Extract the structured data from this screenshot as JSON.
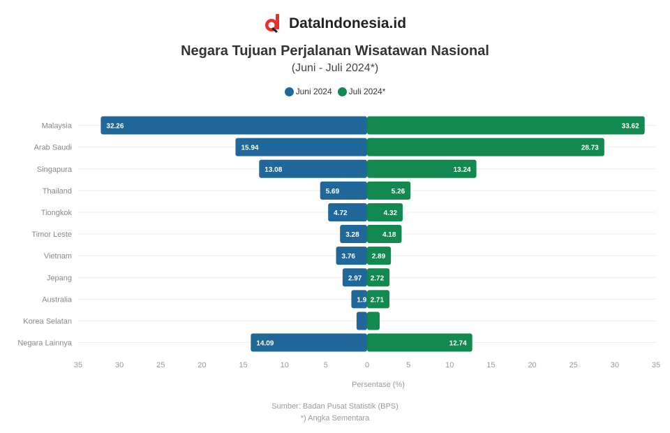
{
  "brand": {
    "name": "DataIndonesia.id",
    "logo": "di-logo-icon"
  },
  "colors": {
    "juni": "#21689a",
    "juli": "#12894f",
    "logo_red": "#e8302d"
  },
  "chart_data": {
    "type": "bar",
    "orientation": "horizontal-butterfly",
    "title": "Negara Tujuan Perjalanan Wisatawan Nasional",
    "subtitle": "(Juni - Juli 2024*)",
    "categories": [
      "Malaysia",
      "Arab Saudi",
      "Singapura",
      "Thailand",
      "Tiongkok",
      "Timor Leste",
      "Vietnam",
      "Jepang",
      "Australia",
      "Korea Selatan",
      "Negara Lainnya"
    ],
    "series": [
      {
        "name": "Juni 2024",
        "values": [
          32.26,
          15.94,
          13.08,
          5.69,
          4.72,
          3.28,
          3.76,
          2.97,
          1.91,
          1.28,
          14.09
        ]
      },
      {
        "name": "Juli 2024*",
        "values": [
          33.62,
          28.73,
          13.24,
          5.26,
          4.32,
          4.18,
          2.89,
          2.72,
          2.71,
          1.52,
          12.74
        ]
      }
    ],
    "xlim": [
      -35,
      35
    ],
    "xticks": [
      -35,
      -30,
      -25,
      -20,
      -15,
      -10,
      -5,
      0,
      5,
      10,
      15,
      20,
      25,
      30,
      35
    ],
    "xticklabels": [
      "35",
      "30",
      "25",
      "20",
      "15",
      "10",
      "5",
      "0",
      "5",
      "10",
      "15",
      "20",
      "25",
      "30",
      "35"
    ],
    "xlabel": "Persentase (%)",
    "legend": "top-center",
    "grid": true
  },
  "source": {
    "line1": "Sumber: Badan Pusat Statistik (BPS)",
    "line2": "*) Angka Sementara"
  }
}
